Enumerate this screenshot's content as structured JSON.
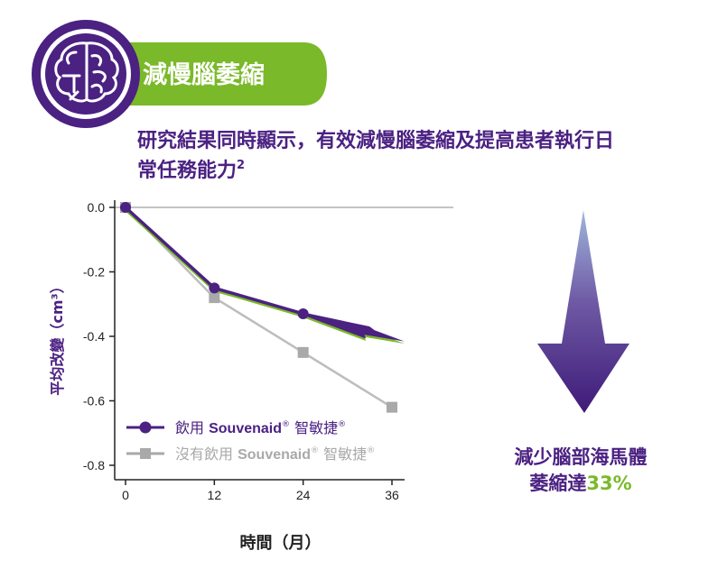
{
  "header": {
    "badge_title": "減慢腦萎縮",
    "subtitle_line1": "研究結果同時顯示，有效減慢腦萎縮及提高患者執行日",
    "subtitle_line2": "常任務能力",
    "subtitle_superscript": "2",
    "icon": "brain-icon"
  },
  "colors": {
    "purple": "#4b2182",
    "green": "#7ab929",
    "gray": "#a9a9a9",
    "axis": "#222222"
  },
  "chart_data": {
    "type": "line",
    "xlabel": "時間（月）",
    "ylabel": "平均改變（cm³）",
    "x": [
      0,
      12,
      24,
      36
    ],
    "x_ticks": [
      "0",
      "12",
      "24",
      "36"
    ],
    "y_ticks": [
      "0.0",
      "-0.2",
      "-0.4",
      "-0.6",
      "-0.8"
    ],
    "xlim": [
      0,
      36
    ],
    "ylim": [
      -0.8,
      0.0
    ],
    "grid": false,
    "legend_position": "bottom-left",
    "series": [
      {
        "name_prefix": "飲用 ",
        "name_brand": "Souvenaid",
        "name_reg": "®",
        "name_suffix": " 智敏捷",
        "name_suffix_reg": "®",
        "values": [
          0.0,
          -0.25,
          -0.33,
          -0.41
        ],
        "marker": "circle"
      },
      {
        "name_prefix": "沒有飲用 ",
        "name_brand": "Souvenaid",
        "name_reg": "®",
        "name_suffix": " 智敏捷",
        "name_suffix_reg": "®",
        "values": [
          0.0,
          -0.28,
          -0.45,
          -0.62
        ],
        "marker": "square"
      }
    ]
  },
  "callout": {
    "line1": "減少腦部海馬體",
    "line2_text": "萎縮達",
    "line2_value": "33%"
  }
}
